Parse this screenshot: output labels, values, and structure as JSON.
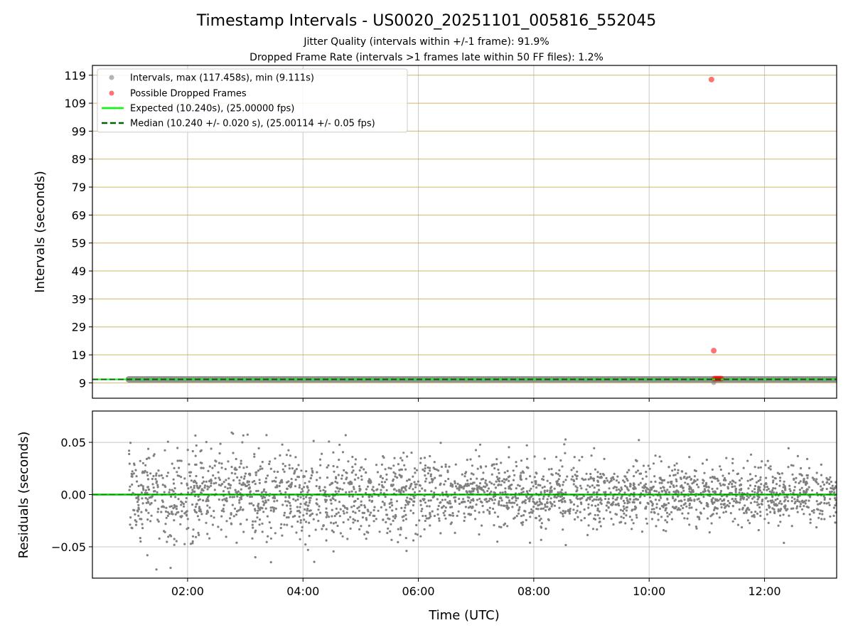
{
  "chart_data": [
    {
      "type": "scatter",
      "title": "Timestamp Intervals - US0020_20251101_005816_552045",
      "subtitle_lines": [
        "Jitter Quality (intervals within +/-1 frame): 91.9%",
        "Dropped Frame Rate (intervals >1 frames late within 50 FF files): 1.2%"
      ],
      "xlabel": "Time (UTC)",
      "ylabel": "Intervals (seconds)",
      "xlim_hours": [
        0.35,
        13.25
      ],
      "ylim": [
        3.5,
        122.5
      ],
      "yticks": [
        9,
        19,
        29,
        39,
        49,
        59,
        69,
        79,
        89,
        99,
        109,
        119
      ],
      "grid": true,
      "legend_position": "top-left",
      "legend": [
        "Intervals, max (117.458s), min (9.111s)",
        "Possible Dropped Frames",
        "Expected (10.240s), (25.00000 fps)",
        "Median (10.240 +/- 0.020 s), (25.00114 +/- 0.05 fps)"
      ],
      "series": [
        {
          "name": "Intervals",
          "color": "#808080",
          "x_range_hours": [
            0.98,
            13.25
          ],
          "y_center": 10.24,
          "y_spread": 0.02,
          "outliers": [
            {
              "x": 11.12,
              "y": 9.111
            }
          ]
        },
        {
          "name": "Possible Dropped Frames",
          "color": "#ff0000",
          "points": [
            {
              "x": 11.08,
              "y": 117.458
            },
            {
              "x": 11.12,
              "y": 20.5
            },
            {
              "x": 11.13,
              "y": 10.5
            },
            {
              "x": 11.16,
              "y": 10.5
            },
            {
              "x": 11.19,
              "y": 10.5
            },
            {
              "x": 11.22,
              "y": 10.5
            },
            {
              "x": 11.25,
              "y": 10.5
            }
          ]
        },
        {
          "name": "Expected",
          "color": "#00ff00",
          "y": 10.24
        },
        {
          "name": "Median",
          "color": "#006400",
          "y": 10.24
        }
      ]
    },
    {
      "type": "scatter",
      "xlabel": "Time (UTC)",
      "ylabel": "Residuals (seconds)",
      "xlim_hours": [
        0.35,
        13.25
      ],
      "ylim": [
        -0.08,
        0.08
      ],
      "yticks": [
        -0.05,
        0.0,
        0.05
      ],
      "ytick_labels": [
        "−0.05",
        "0.00",
        "0.05"
      ],
      "xticks_hours": [
        2,
        4,
        6,
        8,
        10,
        12
      ],
      "xtick_labels": [
        "02:00",
        "04:00",
        "06:00",
        "08:00",
        "10:00",
        "12:00"
      ],
      "grid": true,
      "series": [
        {
          "name": "Residuals",
          "color": "#808080",
          "x_range_hours": [
            0.98,
            13.25
          ],
          "spread_start": 0.032,
          "spread_end": 0.016,
          "count": 2800
        },
        {
          "name": "Zero line",
          "color": "#00cc00",
          "y": 0.0
        }
      ]
    }
  ]
}
